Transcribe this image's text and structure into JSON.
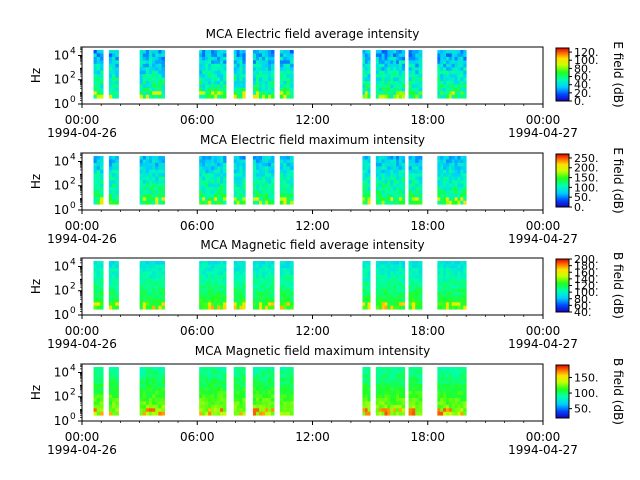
{
  "chart_data": [
    {
      "type": "heatmap",
      "title": "MCA  Electric field average intensity",
      "ylabel": "Hz",
      "y_ticks": [
        "10",
        "10",
        "10"
      ],
      "y_tick_exponents": [
        "0",
        "2",
        "4"
      ],
      "x_ticks": [
        "00:00",
        "06:00",
        "12:00",
        "18:00",
        "00:00"
      ],
      "x_date_start": "1994-04-26",
      "x_date_end": "1994-04-27",
      "xlim_hours": [
        0,
        24
      ],
      "ylim_log10": [
        0,
        4.7
      ],
      "colorbar_label": "E field (dB)",
      "colorbar_range": [
        0,
        130
      ],
      "colorbar_ticks": [
        "0.",
        "20.",
        "40.",
        "60.",
        "80.",
        "100.",
        "120."
      ],
      "colorbar_values": [
        0,
        20,
        40,
        60,
        80,
        100,
        120
      ],
      "data_intervals_hours": [
        [
          0.6,
          1.1
        ],
        [
          1.4,
          1.9
        ],
        [
          3.0,
          4.3
        ],
        [
          6.1,
          7.5
        ],
        [
          7.9,
          8.5
        ],
        [
          8.9,
          10.0
        ],
        [
          10.3,
          11.0
        ],
        [
          14.6,
          15.0
        ],
        [
          15.3,
          16.8
        ],
        [
          17.0,
          17.7
        ],
        [
          18.5,
          20.0
        ]
      ],
      "level_dB": 45,
      "color_noise": 0.11
    },
    {
      "type": "heatmap",
      "title": "MCA  Electric field maximum intensity",
      "ylabel": "Hz",
      "y_ticks": [
        "10",
        "10",
        "10"
      ],
      "y_tick_exponents": [
        "0",
        "2",
        "4"
      ],
      "x_ticks": [
        "00:00",
        "06:00",
        "12:00",
        "18:00",
        "00:00"
      ],
      "x_date_start": "1994-04-26",
      "x_date_end": "1994-04-27",
      "xlim_hours": [
        0,
        24
      ],
      "ylim_log10": [
        0,
        4.7
      ],
      "colorbar_label": "E field (dB)",
      "colorbar_range": [
        0,
        270
      ],
      "colorbar_ticks": [
        "0.",
        "50.",
        "100.",
        "150.",
        "200.",
        "250."
      ],
      "colorbar_values": [
        0,
        50,
        100,
        150,
        200,
        250
      ],
      "data_intervals_hours": [
        [
          0.6,
          1.1
        ],
        [
          1.4,
          1.9
        ],
        [
          3.0,
          4.3
        ],
        [
          6.1,
          7.5
        ],
        [
          7.9,
          8.5
        ],
        [
          8.9,
          10.0
        ],
        [
          10.3,
          11.0
        ],
        [
          14.6,
          15.0
        ],
        [
          15.3,
          16.8
        ],
        [
          17.0,
          17.7
        ],
        [
          18.5,
          20.0
        ]
      ],
      "level_dB": 100,
      "color_noise": 0.09
    },
    {
      "type": "heatmap",
      "title": "MCA  Magnetic field average intensity",
      "ylabel": "Hz",
      "y_ticks": [
        "10",
        "10",
        "10"
      ],
      "y_tick_exponents": [
        "0",
        "2",
        "4"
      ],
      "x_ticks": [
        "00:00",
        "06:00",
        "12:00",
        "18:00",
        "00:00"
      ],
      "x_date_start": "1994-04-26",
      "x_date_end": "1994-04-27",
      "xlim_hours": [
        0,
        24
      ],
      "ylim_log10": [
        0,
        4.7
      ],
      "colorbar_label": "B field (dB)",
      "colorbar_range": [
        40,
        200
      ],
      "colorbar_ticks": [
        "40.",
        "60.",
        "80.",
        "100.",
        "120.",
        "140.",
        "160.",
        "180.",
        "200."
      ],
      "colorbar_values": [
        40,
        60,
        80,
        100,
        120,
        140,
        160,
        180,
        200
      ],
      "data_intervals_hours": [
        [
          0.6,
          1.1
        ],
        [
          1.4,
          1.9
        ],
        [
          3.0,
          4.3
        ],
        [
          6.1,
          7.5
        ],
        [
          7.9,
          8.5
        ],
        [
          8.9,
          10.0
        ],
        [
          10.3,
          11.0
        ],
        [
          14.6,
          15.0
        ],
        [
          15.3,
          16.8
        ],
        [
          17.0,
          17.7
        ],
        [
          18.5,
          20.0
        ]
      ],
      "level_dB": 110,
      "color_noise": 0.05
    },
    {
      "type": "heatmap",
      "title": "MCA  Magnetic field maximum intensity",
      "ylabel": "Hz",
      "y_ticks": [
        "10",
        "10",
        "10"
      ],
      "y_tick_exponents": [
        "0",
        "2",
        "4"
      ],
      "x_ticks": [
        "00:00",
        "06:00",
        "12:00",
        "18:00",
        "00:00"
      ],
      "x_date_start": "1994-04-26",
      "x_date_end": "1994-04-27",
      "xlim_hours": [
        0,
        24
      ],
      "ylim_log10": [
        0,
        4.7
      ],
      "colorbar_label": "B field (dB)",
      "colorbar_range": [
        20,
        190
      ],
      "colorbar_ticks": [
        "50.",
        "100.",
        "150."
      ],
      "colorbar_values": [
        50,
        100,
        150
      ],
      "data_intervals_hours": [
        [
          0.6,
          1.1
        ],
        [
          1.4,
          1.9
        ],
        [
          3.0,
          4.3
        ],
        [
          6.1,
          7.5
        ],
        [
          7.9,
          8.5
        ],
        [
          8.9,
          10.0
        ],
        [
          10.3,
          11.0
        ],
        [
          14.6,
          15.0
        ],
        [
          15.3,
          16.8
        ],
        [
          17.0,
          17.7
        ],
        [
          18.5,
          20.0
        ]
      ],
      "level_dB": 110,
      "color_noise": 0.05
    }
  ]
}
